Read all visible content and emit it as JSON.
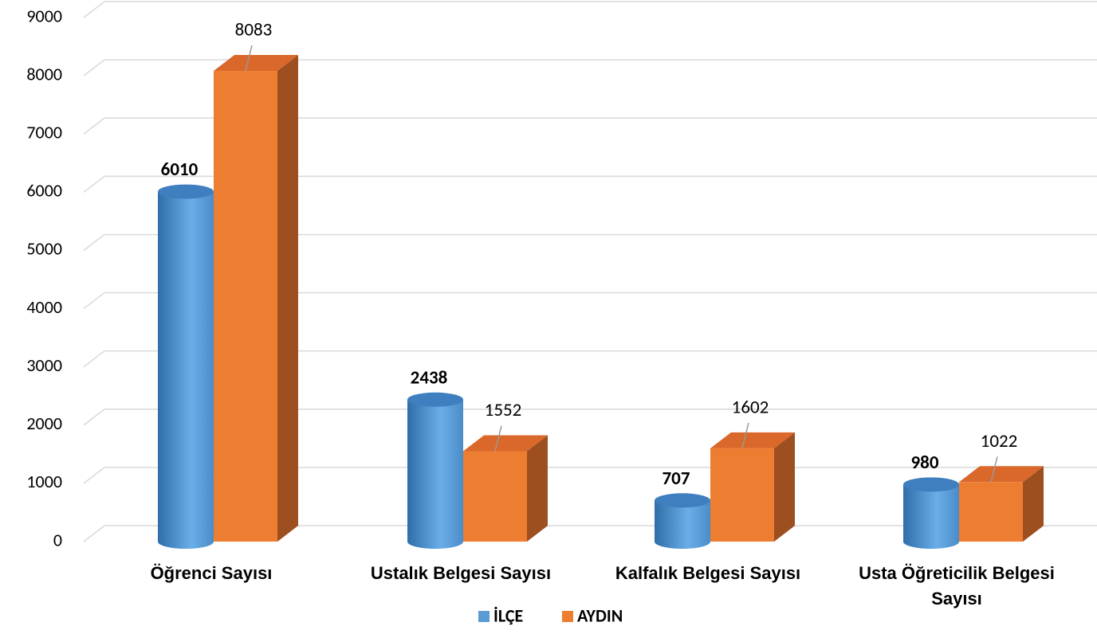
{
  "chart_data": {
    "type": "bar3d",
    "categories": [
      "Öğrenci Sayısı",
      "Ustalık Belgesi Sayısı",
      "Kalfalık Belgesi Sayısı",
      "Usta Öğreticilik Belgesi Sayısı"
    ],
    "series": [
      {
        "name": "İLÇE",
        "color": "#5b9bd5",
        "values": [
          6010,
          2438,
          707,
          980
        ]
      },
      {
        "name": "AYDIN",
        "color": "#ed7d31",
        "values": [
          8083,
          1552,
          1602,
          1022
        ]
      }
    ],
    "ylim": [
      0,
      9000
    ],
    "yticks": [
      0,
      1000,
      2000,
      3000,
      4000,
      5000,
      6000,
      7000,
      8000,
      9000
    ],
    "grid": true,
    "legend": "bottom"
  }
}
